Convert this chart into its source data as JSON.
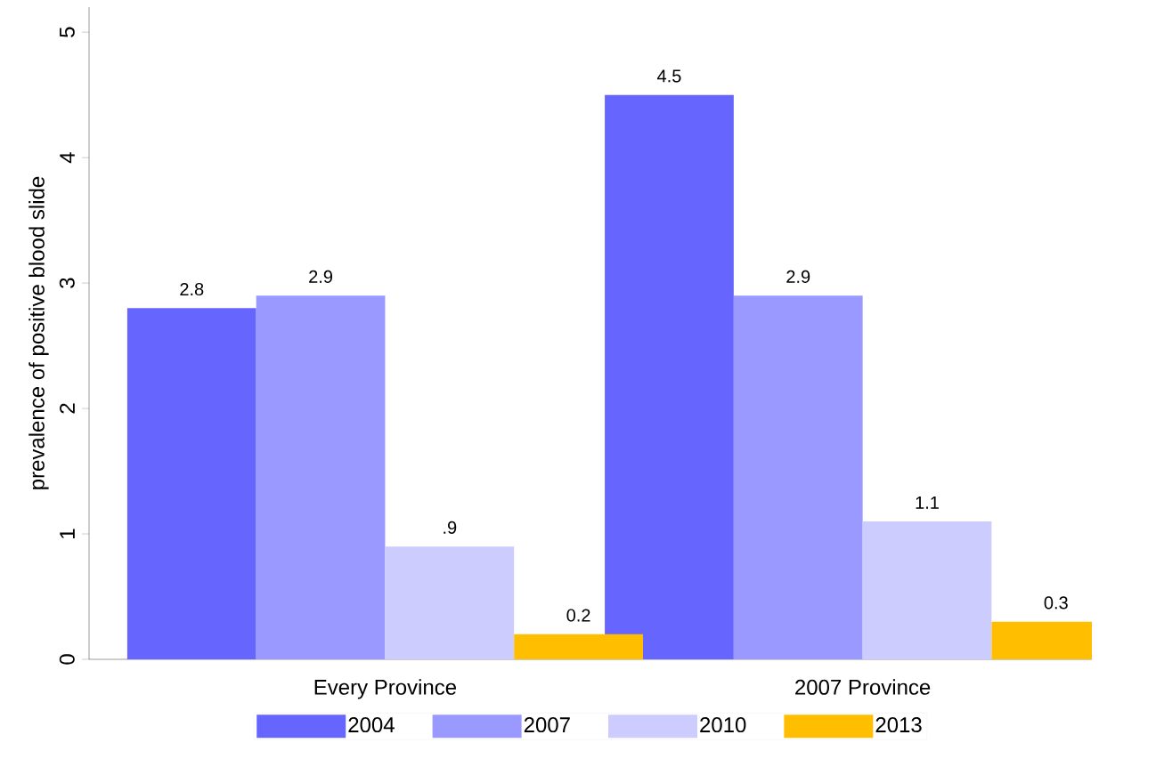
{
  "chart_data": {
    "type": "bar",
    "ylabel": "prevalence of positive blood slide",
    "categories": [
      "Every Province",
      "2007 Province"
    ],
    "series": [
      {
        "name": "2004",
        "color": "#6666ff",
        "values": [
          2.8,
          4.5
        ],
        "value_labels": [
          "2.8",
          "4.5"
        ]
      },
      {
        "name": "2007",
        "color": "#9999ff",
        "values": [
          2.9,
          2.9
        ],
        "value_labels": [
          "2.9",
          "2.9"
        ]
      },
      {
        "name": "2010",
        "color": "#ccccff",
        "values": [
          0.9,
          1.1
        ],
        "value_labels": [
          ".9",
          "1.1"
        ]
      },
      {
        "name": "2013",
        "color": "#ffbf00",
        "values": [
          0.2,
          0.3
        ],
        "value_labels": [
          "0.2",
          "0.3"
        ]
      }
    ],
    "ylim": [
      0,
      5.2
    ],
    "yticks": [
      0,
      1,
      2,
      3,
      4,
      5
    ],
    "grid": false,
    "legend": "bottom"
  }
}
